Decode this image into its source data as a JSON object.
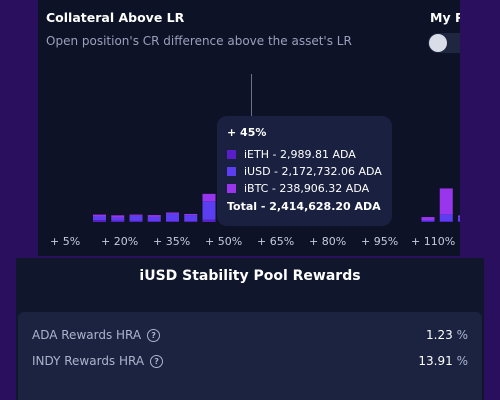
{
  "collateral": {
    "title": "Collateral Above LR",
    "subtitle": "Open position's CR difference above the asset's LR"
  },
  "my_panel": {
    "title": "My P"
  },
  "colors": {
    "ieth": "#5a1ec8",
    "iusd": "#5b3ef0",
    "ibtc": "#9a35ee"
  },
  "chart_data": {
    "type": "bar",
    "stacked": true,
    "x_tick_labels": [
      "+ 5%",
      "+ 20%",
      "+ 35%",
      "+ 50%",
      "+ 65%",
      "+ 80%",
      "+ 95%",
      "+ 110%"
    ],
    "categories": [
      "+5%",
      "+10%",
      "+15%",
      "+20%",
      "+25%",
      "+30%",
      "+35%",
      "+40%",
      "+45%",
      "+50%",
      "+55%",
      "+60%",
      "+65%",
      "+70%",
      "+75%",
      "+80%",
      "+85%",
      "+90%",
      "+95%",
      "+100%",
      "+105%",
      "+110%",
      "+115%"
    ],
    "series": [
      {
        "name": "iETH",
        "values": [
          0.05,
          0.04,
          0.03,
          0.02,
          0.02,
          0.01,
          0.06,
          0.02,
          0.003,
          0,
          0,
          0,
          0,
          0,
          0,
          0,
          0,
          0,
          0.01,
          0.01,
          0.01,
          0.02,
          0.01
        ]
      },
      {
        "name": "iUSD",
        "values": [
          0.1,
          0.08,
          0.14,
          0.11,
          0.2,
          0.16,
          0.5,
          0.18,
          2.17,
          0,
          0,
          0,
          0,
          0,
          0,
          0,
          0,
          0,
          0.02,
          0.18,
          0.1,
          0.8,
          0.1
        ]
      },
      {
        "name": "iBTC",
        "values": [
          0.05,
          0.06,
          0.03,
          0.05,
          0.03,
          0.03,
          0.2,
          0.04,
          0.24,
          0,
          0,
          0,
          0,
          0,
          0,
          0,
          0,
          0,
          0.08,
          0.7,
          0.05,
          1.65,
          0.05
        ]
      }
    ],
    "tooltip": {
      "title": "+ 45%",
      "rows": [
        {
          "label": "iETH - 2,989.81 ADA"
        },
        {
          "label": "iUSD - 2,172,732.06 ADA"
        },
        {
          "label": "iBTC - 238,906.32 ADA"
        }
      ],
      "total": "Total - 2,414,628.20 ADA"
    }
  },
  "pool": {
    "title": "iUSD Stability Pool Rewards",
    "rows": [
      {
        "label": "ADA Rewards HRA",
        "value": "1.23",
        "unit": "%"
      },
      {
        "label": "INDY Rewards HRA",
        "value": "13.91",
        "unit": "%"
      }
    ]
  }
}
